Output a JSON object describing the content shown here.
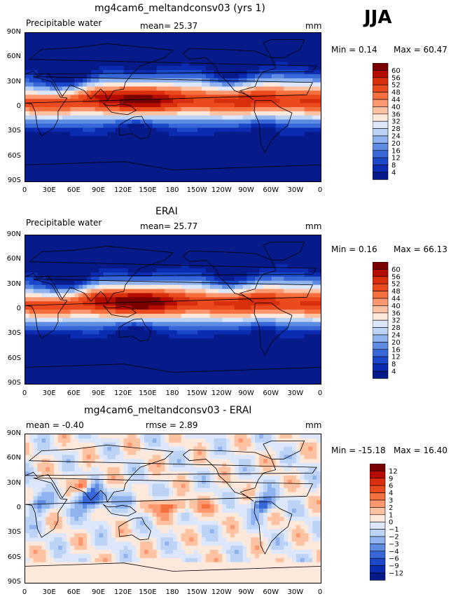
{
  "season": "JJA",
  "x_ticks": [
    "0",
    "30E",
    "60E",
    "90E",
    "120E",
    "150E",
    "180",
    "150W",
    "120W",
    "90W",
    "60W",
    "30W",
    "0"
  ],
  "y_ticks": [
    "90N",
    "60N",
    "30N",
    "0",
    "30S",
    "60S",
    "90S"
  ],
  "panels": [
    {
      "title": "mg4cam6_meltandconsv03 (yrs 1)",
      "left_label": "Precipitable water",
      "center_label": "mean=  25.37",
      "right_label": "mm",
      "min_text": "Min =    0.14",
      "max_text": "Max =  60.47",
      "field": "abs",
      "legend": {
        "labels": [
          "60",
          "56",
          "52",
          "48",
          "44",
          "40",
          "36",
          "32",
          "28",
          "24",
          "20",
          "16",
          "12",
          "8",
          "4"
        ],
        "colors": [
          "#7a0000",
          "#b40c00",
          "#d92f0c",
          "#ea4a1e",
          "#f6703f",
          "#fc9870",
          "#fdc2a2",
          "#fde8dc",
          "#dde7fb",
          "#bcd3f6",
          "#8fb3ee",
          "#5d8ce2",
          "#3868d8",
          "#1a48c8",
          "#0b2bb0",
          "#061a8a"
        ]
      }
    },
    {
      "title": "ERAI",
      "left_label": "Precipitable water",
      "center_label": "mean=  25.77",
      "right_label": "mm",
      "min_text": "Min =    0.16",
      "max_text": "Max =  66.13",
      "field": "abs",
      "legend": {
        "labels": [
          "60",
          "56",
          "52",
          "48",
          "44",
          "40",
          "36",
          "32",
          "28",
          "24",
          "20",
          "16",
          "12",
          "8",
          "4"
        ],
        "colors": [
          "#7a0000",
          "#b40c00",
          "#d92f0c",
          "#ea4a1e",
          "#f6703f",
          "#fc9870",
          "#fdc2a2",
          "#fde8dc",
          "#dde7fb",
          "#bcd3f6",
          "#8fb3ee",
          "#5d8ce2",
          "#3868d8",
          "#1a48c8",
          "#0b2bb0",
          "#061a8a"
        ]
      }
    },
    {
      "title": "mg4cam6_meltandconsv03 - ERAI",
      "left_label": "mean =  -0.40",
      "center_label": "rmse =    2.89",
      "right_label": "mm",
      "min_text": "Min = -15.18",
      "max_text": "Max =  16.40",
      "field": "diff",
      "legend": {
        "labels": [
          "12",
          "9",
          "6",
          "4",
          "3",
          "2",
          "1",
          "0",
          "−1",
          "−2",
          "−3",
          "−4",
          "−6",
          "−9",
          "−12"
        ],
        "colors": [
          "#7a0000",
          "#b40c00",
          "#d92f0c",
          "#ea4a1e",
          "#f6703f",
          "#fc9870",
          "#fdc2a2",
          "#fde8dc",
          "#dde7fb",
          "#bcd3f6",
          "#8fb3ee",
          "#5d8ce2",
          "#3868d8",
          "#1a48c8",
          "#0b2bb0",
          "#061a8a"
        ]
      }
    }
  ]
}
